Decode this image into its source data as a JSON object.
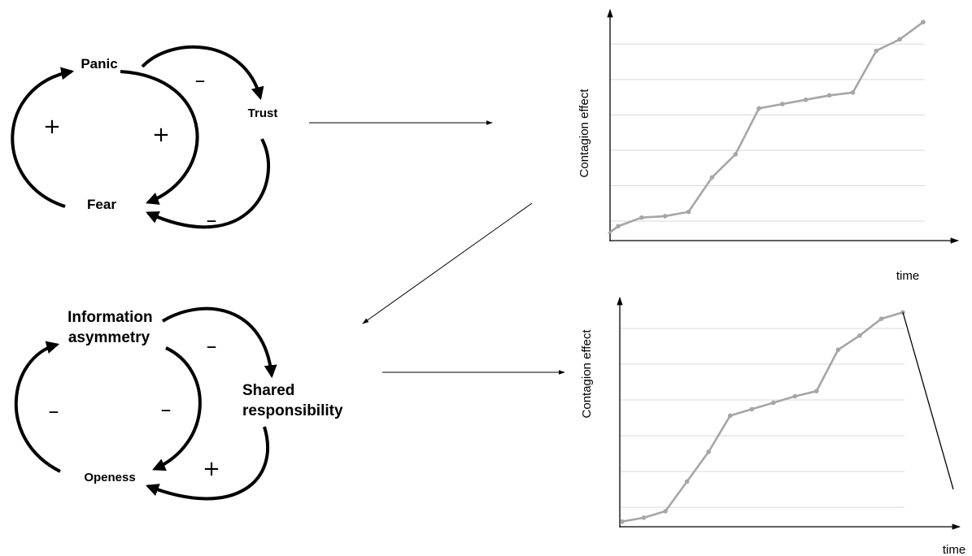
{
  "loop_top": {
    "nodes": {
      "panic": "Panic",
      "trust": "Trust",
      "fear": "Fear"
    },
    "signs": {
      "outer_left": "+",
      "inner": "+",
      "panic_to_trust": "–",
      "trust_to_fear": "–"
    }
  },
  "loop_bottom": {
    "nodes": {
      "info_line1": "Information",
      "info_line2": "asymmetry",
      "shared_line1": "Shared",
      "shared_line2": "responsibility",
      "openess": "Openess"
    },
    "signs": {
      "outer_left": "–",
      "inner": "–",
      "info_to_shared": "–",
      "shared_to_openess": "+"
    }
  },
  "chart_data": [
    {
      "type": "line",
      "title": "",
      "xlabel": "time",
      "ylabel": "Contagion effect",
      "x": [
        1,
        2,
        3,
        4,
        5,
        6,
        7,
        8,
        9,
        10,
        11,
        12,
        13,
        14
      ],
      "series": [
        {
          "values": [
            0.5,
            0.8,
            0.85,
            1.0,
            2.2,
            3.0,
            4.6,
            4.75,
            4.9,
            5.05,
            5.15,
            6.6,
            7.0,
            7.6
          ]
        }
      ],
      "grid": true,
      "ylim": [
        0,
        8
      ]
    },
    {
      "type": "line",
      "title": "",
      "xlabel": "time",
      "ylabel": "Contagion effect",
      "x": [
        1,
        2,
        3,
        4,
        5,
        6,
        7,
        8,
        9,
        10,
        11,
        12,
        13,
        14
      ],
      "series": [
        {
          "values": [
            0.2,
            0.35,
            0.6,
            1.75,
            2.9,
            4.3,
            4.55,
            4.8,
            5.05,
            5.25,
            6.85,
            7.4,
            8.05,
            8.3
          ]
        }
      ],
      "drop_line_to": 1.45,
      "grid": true,
      "ylim": [
        0,
        9
      ]
    }
  ],
  "colors": {
    "line": "#a6a6a6",
    "grid": "#d9d9d9",
    "axis": "#000000"
  }
}
